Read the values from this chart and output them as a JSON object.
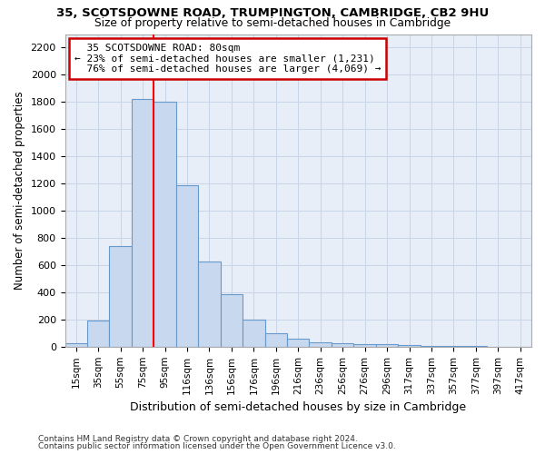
{
  "title_line1": "35, SCOTSDOWNE ROAD, TRUMPINGTON, CAMBRIDGE, CB2 9HU",
  "title_line2": "Size of property relative to semi-detached houses in Cambridge",
  "xlabel": "Distribution of semi-detached houses by size in Cambridge",
  "ylabel": "Number of semi-detached properties",
  "footnote1": "Contains HM Land Registry data © Crown copyright and database right 2024.",
  "footnote2": "Contains public sector information licensed under the Open Government Licence v3.0.",
  "bar_categories": [
    "15sqm",
    "35sqm",
    "55sqm",
    "75sqm",
    "95sqm",
    "116sqm",
    "136sqm",
    "156sqm",
    "176sqm",
    "196sqm",
    "216sqm",
    "236sqm",
    "256sqm",
    "276sqm",
    "296sqm",
    "317sqm",
    "337sqm",
    "357sqm",
    "377sqm",
    "397sqm",
    "417sqm"
  ],
  "bar_values": [
    25,
    190,
    740,
    1820,
    1800,
    1190,
    630,
    385,
    200,
    100,
    60,
    35,
    25,
    20,
    18,
    12,
    8,
    5,
    3,
    2,
    1
  ],
  "bar_color": "#c8d8ee",
  "bar_edge_color": "#6699cc",
  "grid_color": "#c8d4e8",
  "background_color": "#e8eef8",
  "property_label": "35 SCOTSDOWNE ROAD: 80sqm",
  "pct_smaller": 23,
  "pct_smaller_n": "1,231",
  "pct_larger": 76,
  "pct_larger_n": "4,069",
  "vline_bar_index": 3,
  "annotation_box_color": "#cc0000",
  "ylim": [
    0,
    2300
  ],
  "yticks": [
    0,
    200,
    400,
    600,
    800,
    1000,
    1200,
    1400,
    1600,
    1800,
    2000,
    2200
  ]
}
